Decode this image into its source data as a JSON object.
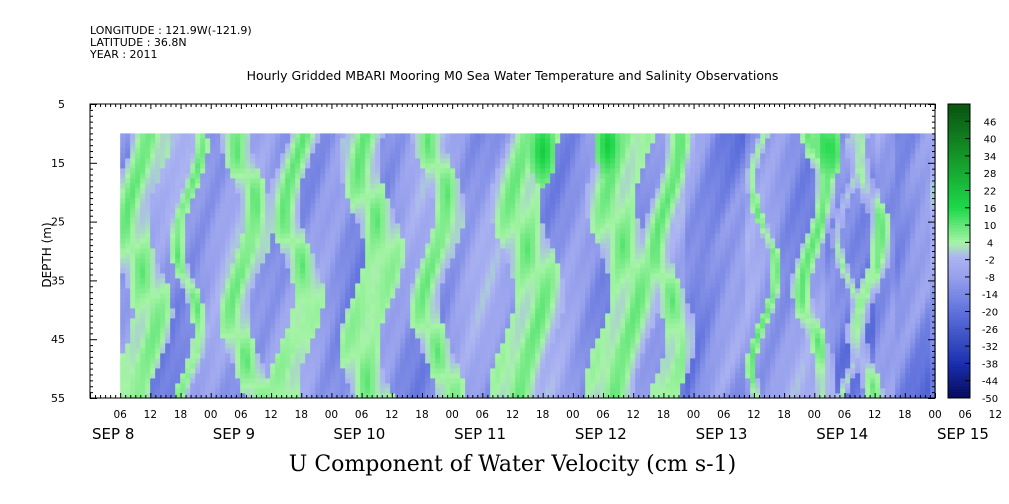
{
  "header": {
    "longitude": "LONGITUDE : 121.9W(-121.9)",
    "latitude": "LATITUDE : 36.8N",
    "year": "YEAR : 2011"
  },
  "chart_data": {
    "type": "heatmap",
    "title": "Hourly Gridded MBARI Mooring M0 Sea Water Temperature and Salinity Observations",
    "xlabel": "U Component of Water Velocity (cm s-1)",
    "ylabel": "DEPTH (m)",
    "y_ticks": [
      5,
      15,
      25,
      35,
      45,
      55
    ],
    "y_range": [
      5,
      55
    ],
    "y_reversed": true,
    "data_depth_range": [
      10,
      55
    ],
    "x_range_hours": [
      0,
      168
    ],
    "x_hour_ticks": [
      "06",
      "12",
      "18",
      "00",
      "06",
      "12",
      "18",
      "00",
      "06",
      "12",
      "18",
      "00",
      "06",
      "12",
      "18",
      "00",
      "06",
      "12",
      "18",
      "00",
      "06",
      "12",
      "18",
      "00",
      "06",
      "12",
      "18",
      "00",
      "06",
      "12",
      "18",
      "00"
    ],
    "x_day_labels": [
      "SEP  8",
      "SEP  9",
      "SEP 10",
      "SEP 11",
      "SEP 12",
      "SEP 13",
      "SEP 14",
      "SEP 15"
    ],
    "data_start_hour": 6,
    "colorbar_levels": [
      46,
      40,
      34,
      28,
      22,
      16,
      10,
      4,
      -2,
      -8,
      -14,
      -20,
      -26,
      -32,
      -38,
      -44,
      -50
    ],
    "colorbar_range": [
      -50,
      52
    ],
    "colors": {
      "deep_green": "#0a5a14",
      "green": "#1ed84a",
      "light_green": "#a6f4a6",
      "light_blue": "#a9b2f0",
      "blue": "#7f8fe6",
      "deep_blue": "#1a2fae",
      "navy": "#050a5c"
    },
    "green_bands_hours": [
      [
        6,
        14
      ],
      [
        18,
        21
      ],
      [
        28,
        34
      ],
      [
        38,
        44
      ],
      [
        52,
        60
      ],
      [
        66,
        72
      ],
      [
        82,
        92
      ],
      [
        101,
        111
      ],
      [
        112,
        118
      ],
      [
        133,
        135
      ],
      [
        142,
        146
      ],
      [
        150,
        152
      ],
      [
        153,
        157
      ]
    ],
    "strong_green_spots": [
      {
        "hour": 90,
        "depth": 13
      },
      {
        "hour": 103,
        "depth": 12
      },
      {
        "hour": 147,
        "depth": 12
      }
    ]
  }
}
